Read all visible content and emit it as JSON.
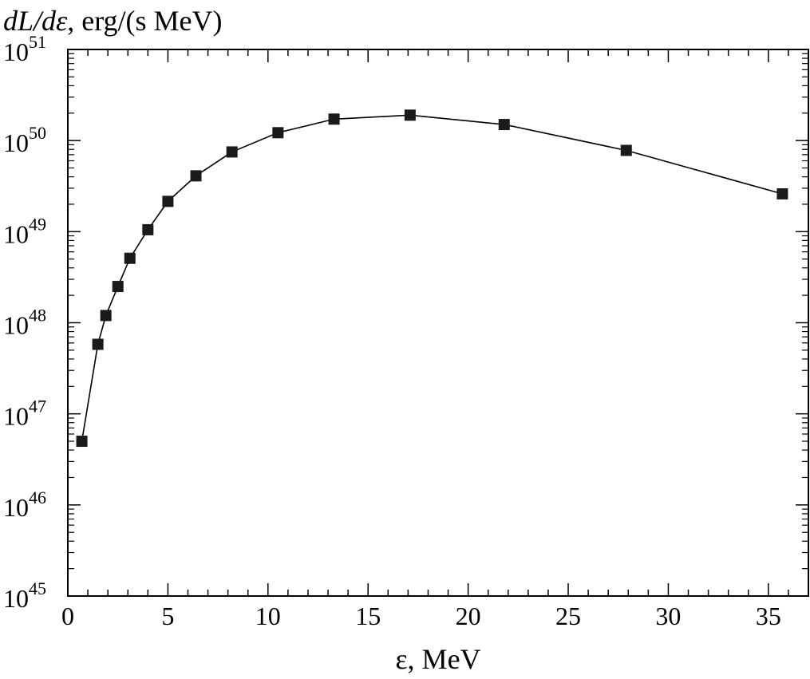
{
  "chart_data": {
    "type": "line",
    "title": "",
    "ylabel_parts": {
      "prefix": "dL/dε",
      "suffix": ", erg/(s MeV)"
    },
    "xlabel": "ε, MeV",
    "xlim": [
      0,
      37
    ],
    "ylim_exponents": [
      45,
      51
    ],
    "y_scale": "log",
    "grid": false,
    "x_ticks": [
      "0",
      "5",
      "10",
      "15",
      "20",
      "25",
      "30",
      "35"
    ],
    "y_tick_base": "10",
    "y_tick_exponents": [
      "45",
      "46",
      "47",
      "48",
      "49",
      "50",
      "51"
    ],
    "marker": "square",
    "series": [
      {
        "x": [
          0.7,
          1.5,
          1.9,
          2.5,
          3.1,
          4.0,
          5.0,
          6.4,
          8.2,
          10.5,
          13.3,
          17.1,
          21.8,
          27.9,
          35.7
        ],
        "y": [
          5e+46,
          5.8e+47,
          1.2e+48,
          2.5e+48,
          5.1e+48,
          1.05e+49,
          2.15e+49,
          4.1e+49,
          7.5e+49,
          1.22e+50,
          1.72e+50,
          1.9e+50,
          1.5e+50,
          7.8e+49,
          2.6e+49
        ]
      }
    ]
  }
}
